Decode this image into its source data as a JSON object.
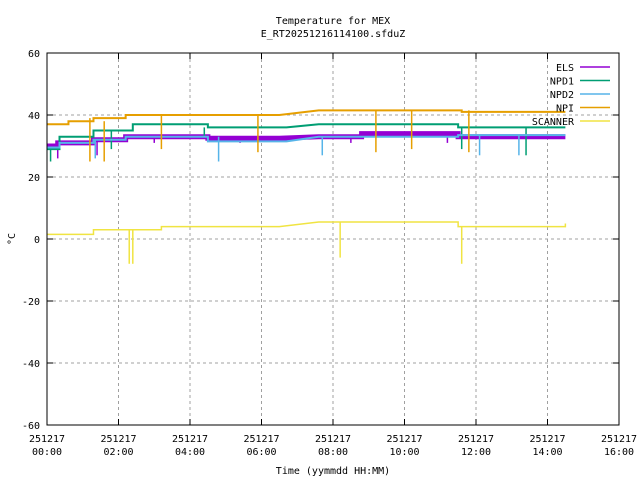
{
  "chart_data": {
    "type": "line",
    "title": "Temperature for MEX",
    "subtitle": "E_RT20251216114100.sfduZ",
    "xlabel": "Time (yymmdd HH:MM)",
    "ylabel": "°C",
    "xlim": [
      0,
      16
    ],
    "ylim": [
      -60,
      60
    ],
    "grid": true,
    "legend_position": "top-right",
    "x_ticks": [
      {
        "value": 0,
        "date": "251217",
        "time": "00:00"
      },
      {
        "value": 2,
        "date": "251217",
        "time": "02:00"
      },
      {
        "value": 4,
        "date": "251217",
        "time": "04:00"
      },
      {
        "value": 6,
        "date": "251217",
        "time": "06:00"
      },
      {
        "value": 8,
        "date": "251217",
        "time": "08:00"
      },
      {
        "value": 10,
        "date": "251217",
        "time": "10:00"
      },
      {
        "value": 12,
        "date": "251217",
        "time": "12:00"
      },
      {
        "value": 14,
        "date": "251217",
        "time": "14:00"
      },
      {
        "value": 16,
        "date": "251217",
        "time": "16:00"
      }
    ],
    "y_ticks": [
      "60",
      "40",
      "20",
      "0",
      "-20",
      "-40",
      "-60"
    ],
    "y_tick_values": [
      60,
      40,
      20,
      0,
      -20,
      -40,
      -60
    ],
    "series": [
      {
        "name": "ELS",
        "color": "#9400d3",
        "points": [
          [
            0,
            30
          ],
          [
            0.3,
            30
          ],
          [
            0.3,
            31
          ],
          [
            1.3,
            31
          ],
          [
            1.3,
            32
          ],
          [
            2.2,
            32
          ],
          [
            2.2,
            33
          ],
          [
            4.5,
            33
          ],
          [
            4.5,
            32.5
          ],
          [
            6.5,
            32.5
          ],
          [
            7.6,
            33
          ],
          [
            8.8,
            33
          ],
          [
            8.8,
            34
          ],
          [
            11.5,
            34
          ],
          [
            11.5,
            33
          ],
          [
            14.5,
            33
          ]
        ],
        "spikes": [
          [
            0.3,
            31,
            26
          ],
          [
            1.4,
            32,
            27
          ],
          [
            3.0,
            33,
            31
          ],
          [
            5.4,
            33,
            31
          ],
          [
            8.5,
            33,
            31
          ],
          [
            11.2,
            34,
            31
          ]
        ]
      },
      {
        "name": "NPD1",
        "color": "#009e73",
        "points": [
          [
            0,
            29
          ],
          [
            0.35,
            29
          ],
          [
            0.35,
            33
          ],
          [
            1.3,
            33
          ],
          [
            1.3,
            35
          ],
          [
            2.4,
            35
          ],
          [
            2.4,
            37
          ],
          [
            4.5,
            37
          ],
          [
            4.5,
            36
          ],
          [
            6.7,
            36
          ],
          [
            7.6,
            37
          ],
          [
            11.5,
            37
          ],
          [
            11.5,
            36
          ],
          [
            14.5,
            36
          ]
        ],
        "spikes": [
          [
            0.1,
            29,
            25
          ],
          [
            1.8,
            35,
            29
          ],
          [
            4.4,
            36,
            33
          ],
          [
            11.6,
            36,
            29
          ],
          [
            13.4,
            36,
            27
          ]
        ]
      },
      {
        "name": "NPD2",
        "color": "#56b4e9",
        "points": [
          [
            0,
            29.5
          ],
          [
            0.35,
            29.5
          ],
          [
            0.35,
            31
          ],
          [
            1.3,
            31
          ],
          [
            1.3,
            32
          ],
          [
            2.2,
            32
          ],
          [
            2.2,
            33
          ],
          [
            4.5,
            33
          ],
          [
            4.5,
            31.5
          ],
          [
            6.7,
            31.5
          ],
          [
            7.6,
            33
          ],
          [
            11.5,
            33
          ],
          [
            11.5,
            33.5
          ],
          [
            14.5,
            33.5
          ]
        ],
        "spikes": [
          [
            1.35,
            32,
            26
          ],
          [
            4.8,
            33,
            25
          ],
          [
            7.7,
            33,
            27
          ],
          [
            12.1,
            33.5,
            27
          ],
          [
            13.2,
            33.5,
            27
          ]
        ]
      },
      {
        "name": "NPI",
        "color": "#e69f00",
        "points": [
          [
            0,
            37
          ],
          [
            0.6,
            37
          ],
          [
            0.6,
            38
          ],
          [
            1.3,
            38
          ],
          [
            1.3,
            39
          ],
          [
            2.2,
            39
          ],
          [
            2.2,
            40
          ],
          [
            6.5,
            40
          ],
          [
            7.6,
            41.5
          ],
          [
            11.6,
            41.5
          ],
          [
            11.6,
            41
          ],
          [
            14.5,
            41
          ]
        ],
        "spikes": [
          [
            1.2,
            39,
            25
          ],
          [
            1.6,
            38,
            25
          ],
          [
            3.2,
            40,
            29
          ],
          [
            5.9,
            40,
            28
          ],
          [
            9.2,
            41.5,
            28
          ],
          [
            10.2,
            41.5,
            29
          ],
          [
            11.8,
            41.5,
            28
          ]
        ]
      },
      {
        "name": "SCANNER",
        "color": "#f0e442",
        "points": [
          [
            0,
            1.5
          ],
          [
            1.3,
            1.5
          ],
          [
            1.3,
            3
          ],
          [
            3.2,
            3
          ],
          [
            3.2,
            4
          ],
          [
            6.5,
            4
          ],
          [
            7.6,
            5.5
          ],
          [
            11.5,
            5.5
          ],
          [
            11.5,
            4
          ],
          [
            14.5,
            4
          ],
          [
            14.5,
            5
          ]
        ],
        "spikes": [
          [
            2.3,
            3,
            -8
          ],
          [
            2.4,
            3,
            -8
          ],
          [
            8.2,
            5.5,
            -6
          ],
          [
            11.6,
            4,
            -8
          ]
        ]
      }
    ]
  }
}
